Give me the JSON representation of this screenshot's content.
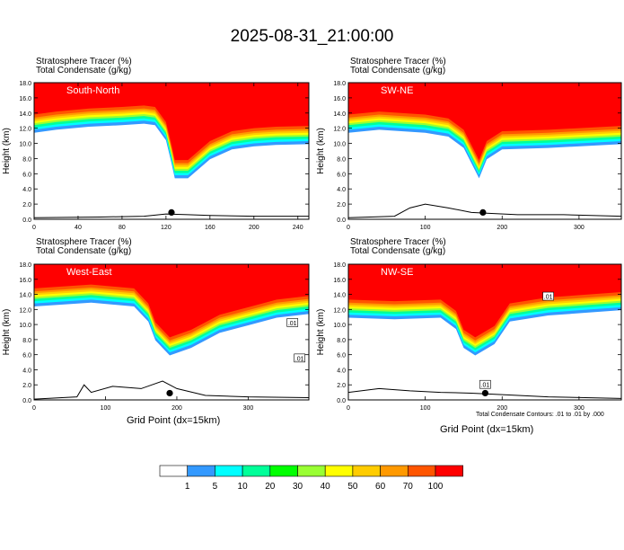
{
  "title": "2025-08-31_21:00:00",
  "panel_lines": {
    "line1": "Stratosphere Tracer   (%)",
    "line2": "Total Condensate   (g/kg)"
  },
  "xlabel": "Grid Point (dx=15km)",
  "ylabel": "Height (km)",
  "contour_note": "Total Condensate Contours: .01 to .01 by .000",
  "colors": {
    "levels": [
      "#ffffff",
      "#3399ff",
      "#00ffff",
      "#00ff99",
      "#00ff00",
      "#99ff33",
      "#ffff00",
      "#ffcc00",
      "#ff9900",
      "#ff5500",
      "#ff0000"
    ],
    "level_labels": [
      "1",
      "5",
      "10",
      "20",
      "30",
      "40",
      "50",
      "60",
      "70",
      "100"
    ]
  },
  "chart_data": [
    {
      "type": "heatmap",
      "name": "South-North",
      "xlim": [
        0,
        250
      ],
      "ylim": [
        0,
        18
      ],
      "xticks": [
        "0",
        "40",
        "80",
        "120",
        "160",
        "200",
        "240"
      ],
      "xtick_values": [
        0,
        40,
        80,
        120,
        160,
        200,
        240
      ],
      "yticks": [
        "0.0",
        "2.0",
        "4.0",
        "6.0",
        "8.0",
        "10.0",
        "12.0",
        "14.0",
        "16.0",
        "18.0"
      ],
      "tropopause": [
        [
          0,
          13.0
        ],
        [
          20,
          13.4
        ],
        [
          50,
          13.8
        ],
        [
          80,
          14.0
        ],
        [
          100,
          14.2
        ],
        [
          110,
          14.0
        ],
        [
          120,
          12.0
        ],
        [
          125,
          9.0
        ],
        [
          128,
          7.0
        ],
        [
          140,
          7.0
        ],
        [
          160,
          9.5
        ],
        [
          180,
          10.8
        ],
        [
          200,
          11.2
        ],
        [
          220,
          11.4
        ],
        [
          250,
          11.5
        ]
      ],
      "terrain": [
        [
          0,
          0.2
        ],
        [
          60,
          0.3
        ],
        [
          100,
          0.4
        ],
        [
          120,
          0.7
        ],
        [
          140,
          0.6
        ],
        [
          160,
          0.5
        ],
        [
          200,
          0.4
        ],
        [
          250,
          0.4
        ]
      ],
      "marker_x": 125,
      "contour_labels": []
    },
    {
      "type": "heatmap",
      "name": "SW-NE",
      "xlim": [
        0,
        355
      ],
      "ylim": [
        0,
        18
      ],
      "xticks": [
        "0",
        "100",
        "200",
        "300"
      ],
      "xtick_values": [
        0,
        100,
        200,
        300
      ],
      "yticks": [
        "0.0",
        "2.0",
        "4.0",
        "6.0",
        "8.0",
        "10.0",
        "12.0",
        "14.0",
        "16.0",
        "18.0"
      ],
      "tropopause": [
        [
          0,
          13.0
        ],
        [
          40,
          13.4
        ],
        [
          100,
          13.0
        ],
        [
          130,
          12.5
        ],
        [
          150,
          11.0
        ],
        [
          160,
          9.0
        ],
        [
          170,
          7.0
        ],
        [
          180,
          9.5
        ],
        [
          200,
          10.8
        ],
        [
          260,
          11.0
        ],
        [
          355,
          11.5
        ]
      ],
      "terrain": [
        [
          0,
          0.2
        ],
        [
          60,
          0.4
        ],
        [
          80,
          1.5
        ],
        [
          100,
          2.0
        ],
        [
          130,
          1.5
        ],
        [
          160,
          0.9
        ],
        [
          180,
          0.8
        ],
        [
          220,
          0.6
        ],
        [
          280,
          0.6
        ],
        [
          355,
          0.4
        ]
      ],
      "marker_x": 175,
      "contour_labels": []
    },
    {
      "type": "heatmap",
      "name": "West-East",
      "xlim": [
        0,
        385
      ],
      "ylim": [
        0,
        18
      ],
      "xticks": [
        "0",
        "100",
        "200",
        "300"
      ],
      "xtick_values": [
        0,
        100,
        200,
        300
      ],
      "yticks": [
        "0.0",
        "2.0",
        "4.0",
        "6.0",
        "8.0",
        "10.0",
        "12.0",
        "14.0",
        "16.0",
        "18.0"
      ],
      "tropopause": [
        [
          0,
          14.0
        ],
        [
          80,
          14.5
        ],
        [
          140,
          14.0
        ],
        [
          160,
          12.0
        ],
        [
          170,
          9.5
        ],
        [
          190,
          7.5
        ],
        [
          220,
          8.5
        ],
        [
          260,
          10.5
        ],
        [
          300,
          11.5
        ],
        [
          340,
          12.5
        ],
        [
          385,
          13.0
        ]
      ],
      "terrain": [
        [
          0,
          0.1
        ],
        [
          60,
          0.4
        ],
        [
          70,
          2.0
        ],
        [
          80,
          1.0
        ],
        [
          110,
          1.8
        ],
        [
          150,
          1.5
        ],
        [
          180,
          2.5
        ],
        [
          200,
          1.5
        ],
        [
          240,
          0.6
        ],
        [
          300,
          0.4
        ],
        [
          385,
          0.3
        ]
      ],
      "marker_x": 190,
      "contour_labels": [
        {
          "x": 362,
          "y": 10.2,
          "text": ".01"
        },
        {
          "x": 372,
          "y": 5.5,
          "text": ".01"
        }
      ]
    },
    {
      "type": "heatmap",
      "name": "NW-SE",
      "xlim": [
        0,
        355
      ],
      "ylim": [
        0,
        18
      ],
      "xticks": [
        "0",
        "100",
        "200",
        "300"
      ],
      "xtick_values": [
        0,
        100,
        200,
        300
      ],
      "yticks": [
        "0.0",
        "2.0",
        "4.0",
        "6.0",
        "8.0",
        "10.0",
        "12.0",
        "14.0",
        "16.0",
        "18.0"
      ],
      "tropopause": [
        [
          0,
          12.5
        ],
        [
          60,
          12.3
        ],
        [
          120,
          12.5
        ],
        [
          140,
          11.0
        ],
        [
          150,
          8.5
        ],
        [
          165,
          7.5
        ],
        [
          190,
          9.0
        ],
        [
          210,
          12.0
        ],
        [
          260,
          12.8
        ],
        [
          355,
          13.5
        ]
      ],
      "terrain": [
        [
          0,
          1.0
        ],
        [
          40,
          1.5
        ],
        [
          80,
          1.2
        ],
        [
          120,
          1.0
        ],
        [
          160,
          0.9
        ],
        [
          200,
          0.7
        ],
        [
          260,
          0.4
        ],
        [
          355,
          0.2
        ]
      ],
      "marker_x": 178,
      "contour_labels": [
        {
          "x": 260,
          "y": 13.7,
          "text": ".01"
        },
        {
          "x": 178,
          "y": 2.0,
          "text": ".01"
        }
      ]
    }
  ]
}
